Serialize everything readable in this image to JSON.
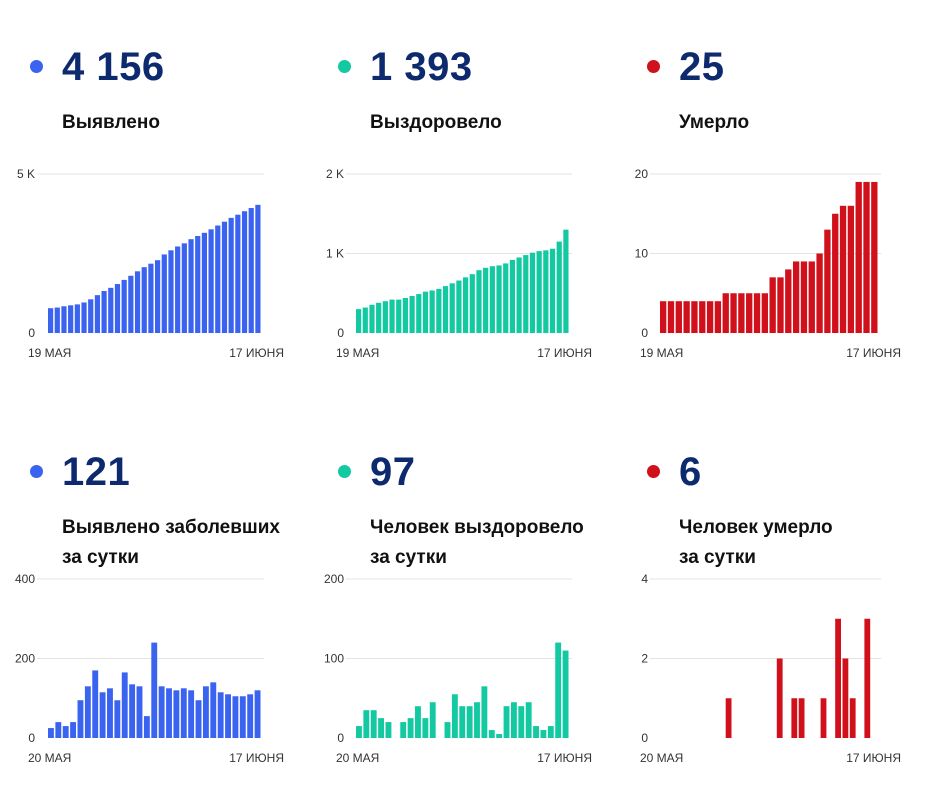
{
  "charts": [
    {
      "id": "detected-total",
      "value": "4 156",
      "label_lines": [
        "Выявлено"
      ],
      "dot_color": "#3a63f0",
      "color": "#3a63f0",
      "y_ticks": [
        {
          "v": 0,
          "t": "0"
        },
        {
          "v": 5000,
          "t": "5 K"
        }
      ],
      "y_max": 5000,
      "x_start_label": "19 МАЯ",
      "x_end_label": "17 ИЮНЯ"
    },
    {
      "id": "recovered-total",
      "value": "1 393",
      "label_lines": [
        "Выздоровело"
      ],
      "dot_color": "#12c9a1",
      "color": "#12c9a1",
      "y_ticks": [
        {
          "v": 0,
          "t": "0"
        },
        {
          "v": 1000,
          "t": "1 K"
        },
        {
          "v": 2000,
          "t": "2 K"
        }
      ],
      "y_max": 2000,
      "x_start_label": "19 МАЯ",
      "x_end_label": "17 ИЮНЯ"
    },
    {
      "id": "died-total",
      "value": "25",
      "label_lines": [
        "Умерло"
      ],
      "dot_color": "#d0101a",
      "color": "#d0101a",
      "y_ticks": [
        {
          "v": 0,
          "t": "0"
        },
        {
          "v": 10,
          "t": "10"
        },
        {
          "v": 20,
          "t": "20"
        }
      ],
      "y_max": 20,
      "x_start_label": "19 МАЯ",
      "x_end_label": "17 ИЮНЯ"
    },
    {
      "id": "detected-daily",
      "value": "121",
      "label_lines": [
        "Выявлено заболевших",
        "за сутки"
      ],
      "dot_color": "#3a63f0",
      "color": "#3a63f0",
      "y_ticks": [
        {
          "v": 0,
          "t": "0"
        },
        {
          "v": 200,
          "t": "200"
        },
        {
          "v": 400,
          "t": "400"
        }
      ],
      "y_max": 400,
      "x_start_label": "20 МАЯ",
      "x_end_label": "17 ИЮНЯ"
    },
    {
      "id": "recovered-daily",
      "value": "97",
      "label_lines": [
        "Человек выздоровело",
        "за сутки"
      ],
      "dot_color": "#12c9a1",
      "color": "#12c9a1",
      "y_ticks": [
        {
          "v": 0,
          "t": "0"
        },
        {
          "v": 100,
          "t": "100"
        },
        {
          "v": 200,
          "t": "200"
        }
      ],
      "y_max": 200,
      "x_start_label": "20 МАЯ",
      "x_end_label": "17 ИЮНЯ"
    },
    {
      "id": "died-daily",
      "value": "6",
      "label_lines": [
        "Человек умерло",
        "за сутки"
      ],
      "dot_color": "#d0101a",
      "color": "#d0101a",
      "y_ticks": [
        {
          "v": 0,
          "t": "0"
        },
        {
          "v": 2,
          "t": "2"
        },
        {
          "v": 4,
          "t": "4"
        }
      ],
      "y_max": 4,
      "x_start_label": "20 МАЯ",
      "x_end_label": "17 ИЮНЯ"
    }
  ],
  "chart_data": [
    {
      "type": "bar",
      "title": "Выявлено",
      "x_range": [
        "19 МАЯ",
        "17 ИЮНЯ"
      ],
      "ylim": [
        0,
        5000
      ],
      "values": [
        780,
        800,
        840,
        870,
        900,
        960,
        1060,
        1190,
        1320,
        1420,
        1540,
        1670,
        1800,
        1940,
        2070,
        2180,
        2290,
        2470,
        2600,
        2720,
        2820,
        2950,
        3050,
        3150,
        3260,
        3380,
        3500,
        3620,
        3720,
        3830,
        3930,
        4030
      ]
    },
    {
      "type": "bar",
      "title": "Выздоровело",
      "x_range": [
        "19 МАЯ",
        "17 ИЮНЯ"
      ],
      "ylim": [
        0,
        2000
      ],
      "values": [
        300,
        320,
        355,
        380,
        400,
        420,
        420,
        440,
        465,
        490,
        520,
        535,
        555,
        590,
        625,
        660,
        700,
        740,
        790,
        820,
        840,
        850,
        875,
        920,
        950,
        980,
        1010,
        1030,
        1040,
        1060,
        1150,
        1300
      ]
    },
    {
      "type": "bar",
      "title": "Умерло",
      "x_range": [
        "19 МАЯ",
        "17 ИЮНЯ"
      ],
      "ylim": [
        0,
        20
      ],
      "values": [
        4,
        4,
        4,
        4,
        4,
        4,
        4,
        4,
        5,
        5,
        5,
        5,
        5,
        5,
        7,
        7,
        8,
        9,
        9,
        9,
        10,
        13,
        15,
        16,
        16,
        19,
        19,
        19
      ]
    },
    {
      "type": "bar",
      "title": "Выявлено заболевших за сутки",
      "x_range": [
        "20 МАЯ",
        "17 ИЮНЯ"
      ],
      "ylim": [
        0,
        400
      ],
      "values": [
        25,
        40,
        30,
        40,
        95,
        130,
        170,
        115,
        125,
        95,
        165,
        135,
        130,
        55,
        240,
        130,
        125,
        120,
        125,
        120,
        95,
        130,
        140,
        115,
        110,
        105,
        105,
        110,
        120
      ]
    },
    {
      "type": "bar",
      "title": "Человек выздоровело за сутки",
      "x_range": [
        "20 МАЯ",
        "17 ИЮНЯ"
      ],
      "ylim": [
        0,
        200
      ],
      "values": [
        15,
        35,
        35,
        25,
        20,
        0,
        20,
        25,
        40,
        25,
        45,
        0,
        20,
        55,
        40,
        40,
        45,
        65,
        10,
        5,
        40,
        45,
        40,
        45,
        15,
        10,
        15,
        120,
        110
      ]
    },
    {
      "type": "bar",
      "title": "Человек умерло за сутки",
      "x_range": [
        "20 МАЯ",
        "17 ИЮНЯ"
      ],
      "ylim": [
        0,
        4
      ],
      "values": [
        0,
        0,
        0,
        0,
        0,
        0,
        0,
        0,
        0,
        1,
        0,
        0,
        0,
        0,
        0,
        0,
        2,
        0,
        1,
        1,
        0,
        0,
        1,
        0,
        3,
        2,
        1,
        0,
        3,
        0
      ]
    }
  ]
}
